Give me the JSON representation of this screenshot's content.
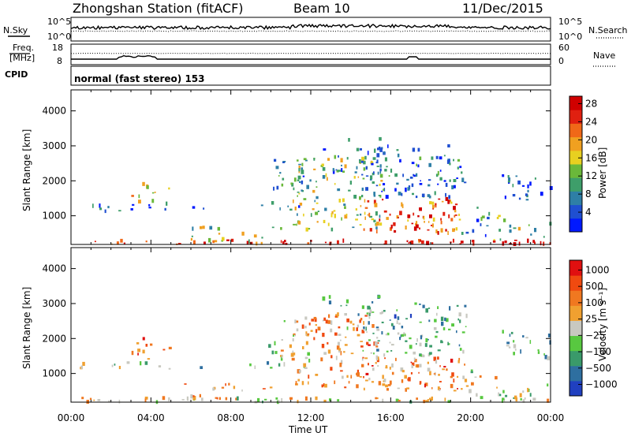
{
  "header": {
    "station": "Zhongshan Station (fitACF)",
    "beam": "Beam 10",
    "date": "11/Dec/2015"
  },
  "top_panels": {
    "nsky_label": "N.Sky",
    "nsky_ticks": [
      "10^5",
      "10^0"
    ],
    "nsearch_label": "N.Search",
    "freq_label_1": "Freq.",
    "freq_label_2": "[MHz]",
    "freq_ticks": [
      "18",
      "8"
    ],
    "nave_label": "Nave",
    "nave_ticks": [
      "60",
      "0"
    ],
    "cpid_label": "CPID",
    "cpid_text": "normal (fast stereo) 153"
  },
  "chart_data": [
    {
      "type": "heatmap",
      "name": "power",
      "xlabel": "Time UT",
      "ylabel": "Slant Range [km]",
      "x_ticks": [
        "00:00",
        "04:00",
        "08:00",
        "12:00",
        "16:00",
        "20:00",
        "00:00"
      ],
      "xlim_hours": [
        0,
        24
      ],
      "y_ticks": [
        1000,
        2000,
        3000,
        4000
      ],
      "ylim": [
        180,
        4600
      ],
      "colorbar": {
        "label": "Power [dB]",
        "ticks": [
          "4",
          "8",
          "12",
          "16",
          "20",
          "24",
          "28"
        ],
        "range": [
          0,
          30
        ],
        "colors": [
          "#0019ff",
          "#1f4fd1",
          "#2e7fa6",
          "#3e9e6a",
          "#6ab83a",
          "#e8d020",
          "#f0a020",
          "#f06818",
          "#e02010",
          "#d00000"
        ]
      }
    },
    {
      "type": "heatmap",
      "name": "velocity",
      "xlabel": "Time UT",
      "ylabel": "Slant Range [km]",
      "x_ticks": [
        "00:00",
        "04:00",
        "08:00",
        "12:00",
        "16:00",
        "20:00",
        "00:00"
      ],
      "xlim_hours": [
        0,
        24
      ],
      "y_ticks": [
        1000,
        2000,
        3000,
        4000
      ],
      "ylim": [
        180,
        4600
      ],
      "colorbar": {
        "label": "Velocity [m s⁻¹]",
        "ticks": [
          "1000",
          "500",
          "100",
          "25",
          "−25",
          "−100",
          "−500",
          "−1000"
        ],
        "colors": [
          "#2040c0",
          "#2e6fa0",
          "#3a9a6a",
          "#58c840",
          "#c8c8c0",
          "#f0a030",
          "#f07820",
          "#f04a10",
          "#e01010"
        ]
      }
    }
  ]
}
